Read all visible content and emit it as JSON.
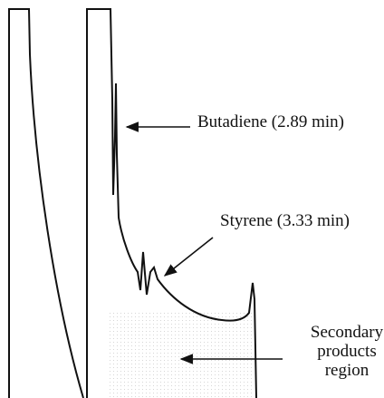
{
  "annotations": [
    {
      "label": "Butadiene (2.89 min)"
    },
    {
      "label": "Styrene (3.33 min)"
    },
    {
      "lines": [
        "Secondary",
        "products",
        "region"
      ]
    }
  ]
}
